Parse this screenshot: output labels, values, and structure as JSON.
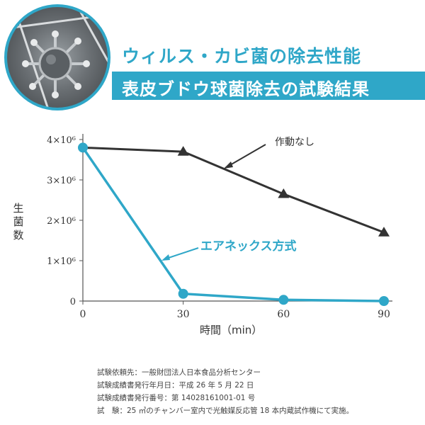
{
  "header": {
    "title": "ウィルス・カビ菌の除去性能",
    "subtitle": "表皮ブドウ球菌除去の試験結果",
    "accent_color": "#2fa7c8",
    "image_icon": "virus-microscope-photo"
  },
  "chart_data": {
    "type": "line",
    "x": [
      0,
      30,
      60,
      90
    ],
    "xlim": [
      0,
      90
    ],
    "ylim": [
      0,
      4000000
    ],
    "xlabel": "時間（min）",
    "ylabel": "生菌数",
    "x_ticks": [
      "0",
      "30",
      "60",
      "90"
    ],
    "y_ticks": [
      {
        "value": 0,
        "label": "0"
      },
      {
        "value": 1000000,
        "label": "1×10⁶"
      },
      {
        "value": 2000000,
        "label": "2×10⁶"
      },
      {
        "value": 3000000,
        "label": "3×10⁶"
      },
      {
        "value": 4000000,
        "label": "4×10⁶"
      }
    ],
    "grid": false,
    "series": [
      {
        "name": "作動なし",
        "values": [
          3800000,
          3700000,
          2650000,
          1700000
        ],
        "color": "#333333",
        "marker": "triangle"
      },
      {
        "name": "エアネックス方式",
        "values": [
          3800000,
          180000,
          30000,
          0
        ],
        "color": "#2fa7c8",
        "marker": "circle"
      }
    ]
  },
  "notes": [
    "試験依頼先：一般財団法人日本食品分析センター",
    "試験成績書発行年月日：平成 26 年 5 月 22 日",
    "試験成績書発行番号：第 14028161001-01 号",
    "試　験：25 ㎥のチャンバー室内で光触媒反応管 18 本内蔵試作機にて実施。"
  ]
}
